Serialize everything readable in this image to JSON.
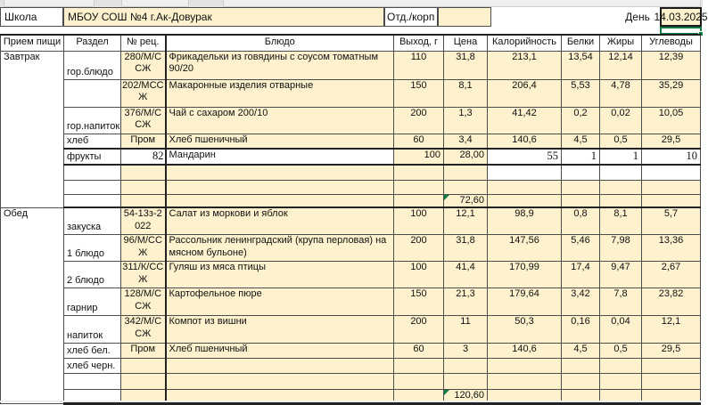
{
  "top_row": {
    "school_label": "Школа",
    "school_name": "МБОУ СОШ №4 г.Ак-Довурак",
    "dept_label": "Отд./корп",
    "dept_value": "",
    "day_label": "День",
    "day_value": "14.03.2025"
  },
  "columns": [
    "Прием пищи",
    "Раздел",
    "№ рец.",
    "Блюдо",
    "Выход, г",
    "Цена",
    "Калорийность",
    "Белки",
    "Жиры",
    "Углеводы"
  ],
  "totals": {
    "breakfast_price": "72,60",
    "lunch_price": "120,60"
  },
  "colors": {
    "cell_fill": "#fdf2cd",
    "grid_line": "#4d4d4d",
    "selection_green": "#107c41",
    "flag_green": "#107c41"
  },
  "rows": [
    {
      "kind": "dish",
      "meal": "Завтрак",
      "meal_span": 8,
      "section": "гор.блюдо",
      "rec": "280/М/ССЖ",
      "dish": "Фрикадельки из говядины с соусом томатным 90/20",
      "out": "110",
      "price": "31,8",
      "kcal": "213,1",
      "protein": "13,54",
      "fat": "12,14",
      "carbs": "12,39",
      "h": 32
    },
    {
      "kind": "dish",
      "section": "",
      "rec": "202/МССЖ",
      "dish": "Макаронные изделия отварные",
      "out": "150",
      "price": "8,1",
      "kcal": "206,4",
      "protein": "5,53",
      "fat": "4,78",
      "carbs": "35,29",
      "h": 31
    },
    {
      "kind": "dish",
      "section": "гор.напиток",
      "rec": "376/М/ССЖ",
      "dish": "Чай с сахаром 200/10",
      "out": "200",
      "price": "1,3",
      "kcal": "41,42",
      "protein": "0,2",
      "fat": "0,02",
      "carbs": "10,05",
      "h": 30
    },
    {
      "kind": "dish",
      "section": "хлеб",
      "rec": "Пром",
      "dish": "Хлеб пшеничный",
      "out": "60",
      "price": "3,4",
      "kcal": "140,6",
      "protein": "4,5",
      "fat": "0,5",
      "carbs": "29,5",
      "h": 17
    },
    {
      "kind": "manual",
      "section": "фрукты",
      "rec": "82",
      "dish": "Мандарин",
      "out": "100",
      "price": "28,00",
      "kcal": "55",
      "protein": "1",
      "fat": "1",
      "carbs": "10",
      "h": 18
    },
    {
      "kind": "empty",
      "white_tail": true,
      "h": 17
    },
    {
      "kind": "empty",
      "h": 16
    },
    {
      "kind": "total",
      "price": "72,60",
      "flag": true,
      "h": 14
    },
    {
      "kind": "dish",
      "meal": "Обед",
      "meal_span": 9,
      "section": "закуска",
      "rec": "54-13з-2022",
      "dish": "Салат из моркови и яблок",
      "out": "100",
      "price": "12,1",
      "kcal": "98,9",
      "protein": "0,8",
      "fat": "8,1",
      "carbs": "5,7",
      "h": 30
    },
    {
      "kind": "dish",
      "section": "1 блюдо",
      "rec": "96/М/ССЖ",
      "dish": "Рассольник ленинградский (крупа перловая) на мясном бульоне)",
      "out": "200",
      "price": "31,8",
      "kcal": "147,56",
      "protein": "5,46",
      "fat": "7,98",
      "carbs": "13,36",
      "h": 30
    },
    {
      "kind": "dish",
      "section": "2 блюдо",
      "rec": "311/К/ССЖ",
      "dish": "Гуляш из мяса птицы",
      "out": "100",
      "price": "41,4",
      "kcal": "170,99",
      "protein": "17,4",
      "fat": "9,47",
      "carbs": "2,67",
      "h": 30
    },
    {
      "kind": "dish",
      "section": "гарнир",
      "rec": "128/М/ССЖ",
      "dish": "Картофельное пюре",
      "out": "150",
      "price": "21,3",
      "kcal": "179,64",
      "protein": "3,42",
      "fat": "7,8",
      "carbs": "23,82",
      "h": 31
    },
    {
      "kind": "dish",
      "section": "напиток",
      "rec": "342/М/ССЖ",
      "dish": "Компот из вишни",
      "out": "200",
      "price": "11",
      "kcal": "50,3",
      "protein": "0,16",
      "fat": "0,04",
      "carbs": "12,1",
      "h": 31
    },
    {
      "kind": "dish",
      "section": "хлеб бел.",
      "rec": "Пром",
      "dish": "Хлеб пшеничный",
      "out": "60",
      "price": "3",
      "kcal": "140,6",
      "protein": "4,5",
      "fat": "0,5",
      "carbs": "29,5",
      "h": 17
    },
    {
      "kind": "dish",
      "section": "хлеб черн.",
      "rec": "",
      "dish": "",
      "out": "",
      "price": "",
      "kcal": "",
      "protein": "",
      "fat": "",
      "carbs": "",
      "h": 17
    },
    {
      "kind": "empty",
      "h": 18
    },
    {
      "kind": "total",
      "price": "120,60",
      "flag": true,
      "last": true,
      "h": 15
    }
  ]
}
